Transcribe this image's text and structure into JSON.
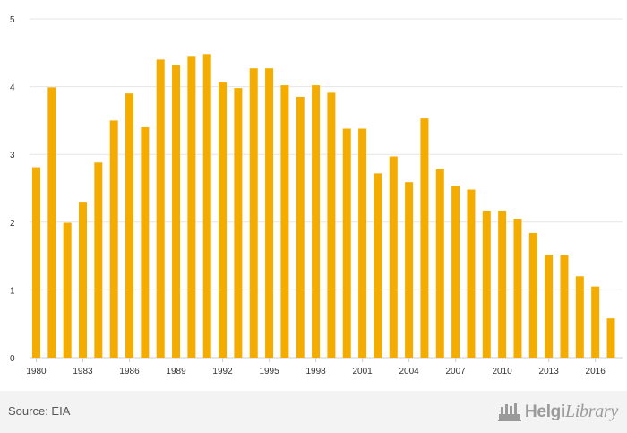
{
  "chart_data": {
    "type": "bar",
    "categories": [
      "1980",
      "1981",
      "1982",
      "1983",
      "1984",
      "1985",
      "1986",
      "1987",
      "1988",
      "1989",
      "1990",
      "1991",
      "1992",
      "1993",
      "1994",
      "1995",
      "1996",
      "1997",
      "1998",
      "1999",
      "2000",
      "2001",
      "2002",
      "2003",
      "2004",
      "2005",
      "2006",
      "2007",
      "2008",
      "2009",
      "2010",
      "2011",
      "2012",
      "2013",
      "2014",
      "2015",
      "2016",
      "2017"
    ],
    "values": [
      2.81,
      3.99,
      1.99,
      2.3,
      2.88,
      3.5,
      3.9,
      3.4,
      4.4,
      4.32,
      4.44,
      4.48,
      4.06,
      3.98,
      4.27,
      4.27,
      4.02,
      3.85,
      4.02,
      3.91,
      3.38,
      3.38,
      2.72,
      2.97,
      2.59,
      3.53,
      2.78,
      2.54,
      2.48,
      2.17,
      2.17,
      2.05,
      1.84,
      1.52,
      1.52,
      1.2,
      1.05,
      0.58
    ],
    "x_tick_labels": [
      "1980",
      "1983",
      "1986",
      "1989",
      "1992",
      "1995",
      "1998",
      "2001",
      "2004",
      "2007",
      "2010",
      "2013",
      "2016"
    ],
    "y_tick_labels": [
      "0",
      "1",
      "2",
      "3",
      "4",
      "5"
    ],
    "ylim": [
      0,
      5
    ],
    "grid": true,
    "bar_color": "#f5ac00",
    "title": "",
    "xlabel": "",
    "ylabel": ""
  },
  "footer": {
    "source": "Source: EIA",
    "brand_part1": "Helgi",
    "brand_part2": "Library",
    "brand_color": "#9a9a9a",
    "background": "#f3f3f3"
  }
}
